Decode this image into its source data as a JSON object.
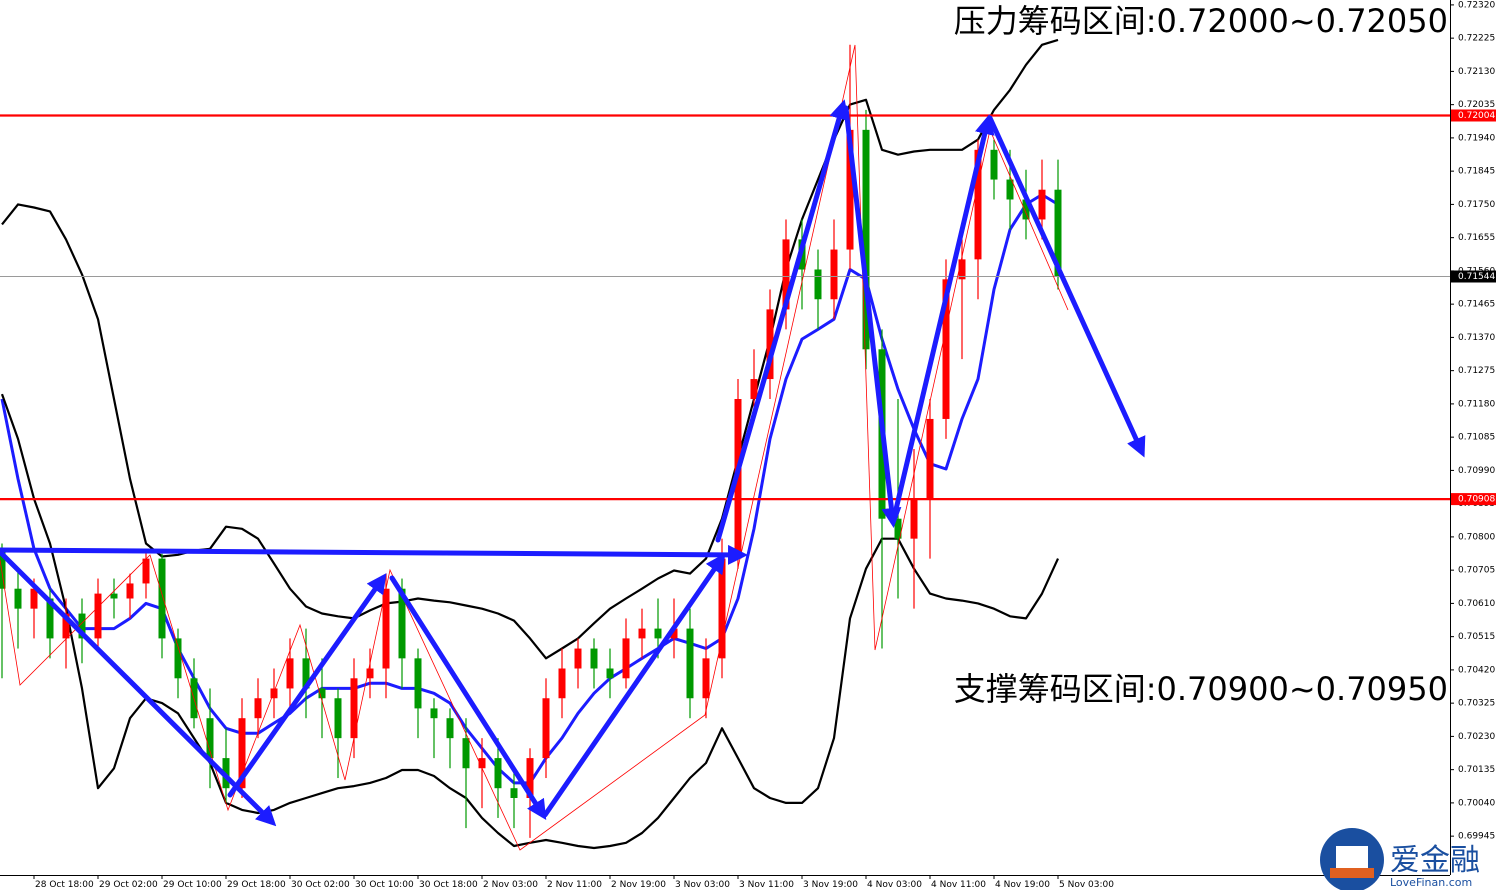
{
  "chart_data": {
    "type": "candlestick",
    "annotations": [
      "压力筹码区间:0.72000~0.72050",
      "支撑筹码区间:0.70900~0.70950"
    ],
    "categories": [
      null,
      null,
      "28 Oct 18:00",
      null,
      null,
      null,
      "29 Oct 02:00",
      null,
      null,
      null,
      "29 Oct 10:00",
      null,
      null,
      null,
      "29 Oct 18:00",
      null,
      null,
      null,
      "30 Oct 02:00",
      null,
      null,
      null,
      "30 Oct 10:00",
      null,
      null,
      null,
      "30 Oct 18:00",
      null,
      null,
      null,
      "2 Nov 03:00",
      null,
      null,
      null,
      "2 Nov 11:00",
      null,
      null,
      null,
      "2 Nov 19:00",
      null,
      null,
      null,
      "3 Nov 03:00",
      null,
      null,
      null,
      "3 Nov 11:00",
      null,
      null,
      null,
      "3 Nov 19:00",
      null,
      null,
      null,
      "4 Nov 03:00",
      null,
      null,
      null,
      "4 Nov 11:00",
      null,
      null,
      null,
      "4 Nov 19:00",
      null,
      null,
      null,
      "5 Nov 03:00"
    ],
    "open": [
      0.70766,
      0.70652,
      0.70595,
      0.70624,
      0.7051,
      0.70581,
      0.7051,
      0.70638,
      0.70624,
      0.70667,
      0.70738,
      0.7051,
      0.70396,
      0.70282,
      0.70168,
      0.70082,
      0.70282,
      0.70339,
      0.70367,
      0.70453,
      0.70367,
      0.70339,
      0.70225,
      0.70396,
      0.70424,
      0.70652,
      0.70453,
      0.7031,
      0.70282,
      0.70225,
      0.70139,
      0.70168,
      0.70082,
      0.70054,
      0.70168,
      0.70339,
      0.70424,
      0.70481,
      0.70424,
      0.70396,
      0.7051,
      0.70538,
      0.7051,
      0.70538,
      0.70339,
      0.70453,
      0.70738,
      0.71194,
      0.71251,
      0.7145,
      0.7165,
      0.71564,
      0.71479,
      0.71621,
      0.71963,
      0.71336,
      0.70852,
      0.70795,
      0.70909,
      0.71137,
      0.71536,
      0.71593,
      0.71906,
      0.71821,
      0.71764,
      0.71707,
      0.71792
    ],
    "high": [
      0.70781,
      0.70709,
      0.70681,
      0.70652,
      0.70624,
      0.70624,
      0.70681,
      0.70681,
      0.70695,
      0.70766,
      0.70752,
      0.70538,
      0.70453,
      0.70367,
      0.70253,
      0.70339,
      0.70396,
      0.70424,
      0.7051,
      0.70538,
      0.70453,
      0.70367,
      0.70453,
      0.70481,
      0.70695,
      0.70681,
      0.70481,
      0.70339,
      0.7031,
      0.70282,
      0.70225,
      0.70225,
      0.70139,
      0.70196,
      0.70396,
      0.70481,
      0.7051,
      0.7051,
      0.70481,
      0.70567,
      0.70595,
      0.70624,
      0.70624,
      0.70595,
      0.7051,
      0.70795,
      0.71251,
      0.71336,
      0.71507,
      0.71707,
      0.71707,
      0.71621,
      0.71707,
      0.72206,
      0.7202,
      0.71393,
      0.71194,
      0.71051,
      0.71194,
      0.71593,
      0.7165,
      0.71935,
      0.71935,
      0.71906,
      0.71849,
      0.71878,
      0.71878
    ],
    "low": [
      0.70396,
      0.70481,
      0.7051,
      0.70453,
      0.70424,
      0.70439,
      0.70481,
      0.70567,
      0.70567,
      0.70624,
      0.70453,
      0.70339,
      0.70253,
      0.70082,
      0.7004,
      0.70054,
      0.70225,
      0.70282,
      0.7031,
      0.70282,
      0.70225,
      0.70111,
      0.70168,
      0.70339,
      0.70339,
      0.70367,
      0.70225,
      0.70168,
      0.70139,
      0.69968,
      0.70025,
      0.69997,
      0.69968,
      0.6994,
      0.70111,
      0.70282,
      0.70367,
      0.70367,
      0.70339,
      0.70367,
      0.70453,
      0.70453,
      0.70453,
      0.70282,
      0.70282,
      0.70396,
      0.70709,
      0.71137,
      0.71194,
      0.71393,
      0.7145,
      0.71393,
      0.71422,
      0.71564,
      0.71279,
      0.70481,
      0.70624,
      0.70595,
      0.70738,
      0.7108,
      0.71308,
      0.71479,
      0.71764,
      0.71678,
      0.7165,
      0.7165,
      0.71507
    ],
    "close": [
      0.70652,
      0.70595,
      0.70652,
      0.7051,
      0.70581,
      0.7051,
      0.70638,
      0.70624,
      0.70667,
      0.70738,
      0.7051,
      0.70396,
      0.70282,
      0.70168,
      0.70082,
      0.70282,
      0.70339,
      0.70367,
      0.70453,
      0.70367,
      0.70339,
      0.70225,
      0.70396,
      0.70424,
      0.70652,
      0.70453,
      0.7031,
      0.70282,
      0.70225,
      0.70139,
      0.70168,
      0.70082,
      0.70054,
      0.70168,
      0.70339,
      0.70424,
      0.70481,
      0.70424,
      0.70396,
      0.7051,
      0.70538,
      0.7051,
      0.70538,
      0.70339,
      0.70453,
      0.70738,
      0.71194,
      0.71251,
      0.7145,
      0.7165,
      0.71564,
      0.71479,
      0.71621,
      0.71963,
      0.71336,
      0.70852,
      0.70795,
      0.70909,
      0.71137,
      0.71536,
      0.71593,
      0.71906,
      0.71821,
      0.71764,
      0.71707,
      0.71792,
      0.71544
    ],
    "up_color": "#ff0000",
    "down_color": "#009900",
    "series": [
      {
        "color": "#1c1cff",
        "values": [
          0.71194,
          0.70966,
          0.70766,
          0.70652,
          0.70595,
          0.70538,
          0.70538,
          0.70538,
          0.70567,
          0.7061,
          0.70595,
          0.70481,
          0.70396,
          0.7031,
          0.70253,
          0.70239,
          0.70239,
          0.70268,
          0.70296,
          0.70339,
          0.70367,
          0.70367,
          0.70367,
          0.70382,
          0.70382,
          0.70367,
          0.70367,
          0.70353,
          0.70325,
          0.70253,
          0.70196,
          0.70139,
          0.70097,
          0.70097,
          0.70168,
          0.70225,
          0.70296,
          0.70353,
          0.70396,
          0.70424,
          0.70453,
          0.70481,
          0.7051,
          0.70496,
          0.70481,
          0.7051,
          0.70624,
          0.70823,
          0.7108,
          0.71251,
          0.71365,
          0.71393,
          0.71422,
          0.71564,
          0.71536,
          0.71365,
          0.71222,
          0.71108,
          0.71009,
          0.70994,
          0.71137,
          0.71251,
          0.71507,
          0.71678,
          0.7175,
          0.71778,
          0.7175
        ]
      },
      {
        "color": "#000000",
        "values": [
          0.71693,
          0.7175,
          0.71741,
          0.7173,
          0.7165,
          0.7155,
          0.71422,
          0.71194,
          0.70966,
          0.70781,
          0.70744,
          0.70749,
          0.70761,
          0.70766,
          0.70829,
          0.70823,
          0.70795,
          0.70724,
          0.70652,
          0.70601,
          0.70581,
          0.70573,
          0.70567,
          0.7059,
          0.7061,
          0.70615,
          0.70624,
          0.70618,
          0.70613,
          0.70604,
          0.70595,
          0.70581,
          0.70561,
          0.7051,
          0.70453,
          0.70481,
          0.7051,
          0.70553,
          0.70595,
          0.70624,
          0.70652,
          0.70681,
          0.70704,
          0.70695,
          0.70738,
          0.70852,
          0.71023,
          0.71194,
          0.71365,
          0.71564,
          0.71707,
          0.71821,
          0.71935,
          0.72035,
          0.72049,
          0.71906,
          0.71892,
          0.71901,
          0.71906,
          0.71906,
          0.71906,
          0.71935,
          0.7202,
          0.72077,
          0.72149,
          0.72206,
          0.7222
        ]
      },
      {
        "color": "#000000",
        "values": [
          0.71208,
          0.7108,
          0.70909,
          0.70781,
          0.70595,
          0.70367,
          0.70082,
          0.70139,
          0.70282,
          0.70339,
          0.70325,
          0.70296,
          0.70225,
          0.70154,
          0.7004,
          0.7002,
          0.70011,
          0.7002,
          0.7004,
          0.70054,
          0.70068,
          0.70082,
          0.70088,
          0.70097,
          0.70111,
          0.70134,
          0.70134,
          0.70117,
          0.70082,
          0.70054,
          0.69997,
          0.69954,
          0.69917,
          0.69926,
          0.69934,
          0.69926,
          0.69917,
          0.69911,
          0.69917,
          0.69926,
          0.69954,
          0.69997,
          0.70054,
          0.70111,
          0.70154,
          0.70253,
          0.70168,
          0.70082,
          0.70054,
          0.7004,
          0.7004,
          0.70082,
          0.70225,
          0.70567,
          0.70709,
          0.70795,
          0.70795,
          0.70709,
          0.70638,
          0.70624,
          0.70618,
          0.7061,
          0.70595,
          0.70573,
          0.70567,
          0.70638,
          0.70738
        ]
      }
    ],
    "levels": [
      {
        "value": 0.72004,
        "color": "#ff0000"
      },
      {
        "value": 0.70908,
        "color": "#ff0000"
      },
      {
        "value": 0.71544,
        "color": "#000000"
      }
    ],
    "ylim": [
      0.69834,
      0.72334
    ],
    "yticks": [
      {
        "value": 0.7232,
        "label": "0.72320"
      },
      {
        "value": 0.72225,
        "label": "0.72225"
      },
      {
        "value": 0.7213,
        "label": "0.72130"
      },
      {
        "value": 0.72035,
        "label": "0.72035"
      },
      {
        "value": 0.7194,
        "label": "0.71940"
      },
      {
        "value": 0.71845,
        "label": "0.71845"
      },
      {
        "value": 0.7175,
        "label": "0.71750"
      },
      {
        "value": 0.71655,
        "label": "0.71655"
      },
      {
        "value": 0.7156,
        "label": "0.71560"
      },
      {
        "value": 0.71465,
        "label": "0.71465"
      },
      {
        "value": 0.7137,
        "label": "0.71370"
      },
      {
        "value": 0.71275,
        "label": "0.71275"
      },
      {
        "value": 0.7118,
        "label": "0.71180"
      },
      {
        "value": 0.71085,
        "label": "0.71085"
      },
      {
        "value": 0.7099,
        "label": "0.70990"
      },
      {
        "value": 0.70895,
        "label": "0.70895"
      },
      {
        "value": 0.708,
        "label": "0.70800"
      },
      {
        "value": 0.70705,
        "label": "0.70705"
      },
      {
        "value": 0.7061,
        "label": "0.70610"
      },
      {
        "value": 0.70515,
        "label": "0.70515"
      },
      {
        "value": 0.7042,
        "label": "0.70420"
      },
      {
        "value": 0.70325,
        "label": "0.70325"
      },
      {
        "value": 0.7023,
        "label": "0.70230"
      },
      {
        "value": 0.70135,
        "label": "0.70135"
      },
      {
        "value": 0.7004,
        "label": "0.70040"
      },
      {
        "value": 0.69945,
        "label": "0.69945"
      }
    ]
  },
  "watermark": {
    "name": "爱金融",
    "site": "LoveFinan.com"
  }
}
